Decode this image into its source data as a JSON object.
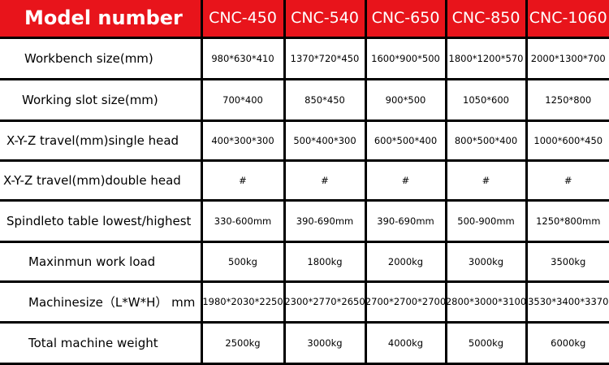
{
  "table": {
    "header": [
      "Model number",
      "CNC-450",
      "CNC-540",
      "CNC-650",
      "CNC-850",
      "CNC-1060"
    ],
    "rows": [
      [
        "Workbench size(mm)",
        "980*630*410",
        "1370*720*450",
        "1600*900*500",
        "1800*1200*570",
        "2000*1300*700"
      ],
      [
        "Working slot size(mm)",
        "700*400",
        "850*450",
        "900*500",
        "1050*600",
        "1250*800"
      ],
      [
        "X-Y-Z travel(mm)single head",
        "400*300*300",
        "500*400*300",
        "600*500*400",
        "800*500*400",
        "1000*600*450"
      ],
      [
        "X-Y-Z travel(mm)double head",
        "#",
        "#",
        "#",
        "#",
        "#"
      ],
      [
        "Spindleto table lowest/highest",
        "330-600mm",
        "390-690mm",
        "390-690mm",
        "500-900mm",
        "1250*800mm"
      ],
      [
        "Maxinmun work load",
        "500kg",
        "1800kg",
        "2000kg",
        "3000kg",
        "3500kg"
      ],
      [
        "Machinesize（L*W*H） mm",
        "1980*2030*2250",
        "2300*2770*2650",
        "2700*2700*2700",
        "2800*3000*3100",
        "3530*3400*3370"
      ],
      [
        "Total machine weight",
        "2500kg",
        "3000kg",
        "4000kg",
        "5000kg",
        "6000kg"
      ]
    ]
  }
}
